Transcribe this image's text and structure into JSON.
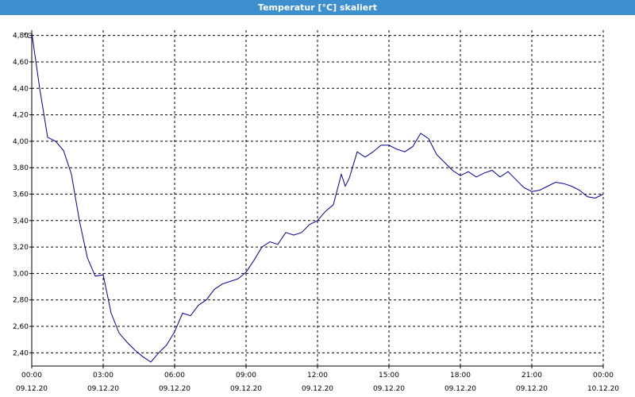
{
  "window": {
    "title": "Temperatur [°C] skaliert"
  },
  "colors": {
    "titlebar": "#3d8fcd",
    "series_line": "#00008b",
    "grid": "#000000"
  },
  "chart_data": {
    "type": "line",
    "title": "Temperatur [°C] skaliert",
    "ylabel": "°C",
    "xlabel": "",
    "ylim": [
      2.3,
      4.84
    ],
    "xlim": [
      "09.12.20 00:00",
      "10.12.20 00:00"
    ],
    "y_ticks": [
      "2,40",
      "2,60",
      "2,80",
      "3,00",
      "3,20",
      "3,40",
      "3,60",
      "3,80",
      "4,00",
      "4,20",
      "4,40",
      "4,60",
      "4,80"
    ],
    "x_ticks": [
      {
        "time": "00:00",
        "date": "09.12.20"
      },
      {
        "time": "03:00",
        "date": "09.12.20"
      },
      {
        "time": "06:00",
        "date": "09.12.20"
      },
      {
        "time": "09:00",
        "date": "09.12.20"
      },
      {
        "time": "12:00",
        "date": "09.12.20"
      },
      {
        "time": "15:00",
        "date": "09.12.20"
      },
      {
        "time": "18:00",
        "date": "09.12.20"
      },
      {
        "time": "21:00",
        "date": "09.12.20"
      },
      {
        "time": "00:00",
        "date": "10.12.20"
      }
    ],
    "grid": true,
    "series": [
      {
        "x": [
          "09.12.20 00:00",
          "09.12.20 00:20",
          "09.12.20 00:40",
          "09.12.20 01:00",
          "09.12.20 01:20",
          "09.12.20 01:40",
          "09.12.20 02:00",
          "09.12.20 02:20",
          "09.12.20 02:40",
          "09.12.20 03:00",
          "09.12.20 03:20",
          "09.12.20 03:40",
          "09.12.20 04:00",
          "09.12.20 04:20",
          "09.12.20 04:40",
          "09.12.20 05:00",
          "09.12.20 05:20",
          "09.12.20 05:40",
          "09.12.20 06:00",
          "09.12.20 06:20",
          "09.12.20 06:40",
          "09.12.20 07:00",
          "09.12.20 07:20",
          "09.12.20 07:40",
          "09.12.20 08:00",
          "09.12.20 08:20",
          "09.12.20 08:40",
          "09.12.20 09:00",
          "09.12.20 09:20",
          "09.12.20 09:40",
          "09.12.20 10:00",
          "09.12.20 10:20",
          "09.12.20 10:40",
          "09.12.20 11:00",
          "09.12.20 11:20",
          "09.12.20 11:40",
          "09.12.20 12:00",
          "09.12.20 12:20",
          "09.12.20 12:40",
          "09.12.20 13:00",
          "09.12.20 13:10",
          "09.12.20 13:20",
          "09.12.20 13:40",
          "09.12.20 14:00",
          "09.12.20 14:20",
          "09.12.20 14:40",
          "09.12.20 15:00",
          "09.12.20 15:20",
          "09.12.20 15:40",
          "09.12.20 16:00",
          "09.12.20 16:20",
          "09.12.20 16:40",
          "09.12.20 17:00",
          "09.12.20 17:20",
          "09.12.20 17:40",
          "09.12.20 18:00",
          "09.12.20 18:20",
          "09.12.20 18:40",
          "09.12.20 19:00",
          "09.12.20 19:20",
          "09.12.20 19:40",
          "09.12.20 20:00",
          "09.12.20 20:20",
          "09.12.20 20:40",
          "09.12.20 21:00",
          "09.12.20 21:20",
          "09.12.20 21:40",
          "09.12.20 22:00",
          "09.12.20 22:20",
          "09.12.20 22:40",
          "09.12.20 23:00",
          "09.12.20 23:20",
          "09.12.20 23:40",
          "10.12.20 00:00"
        ],
        "values": [
          4.82,
          4.4,
          4.03,
          4.0,
          3.93,
          3.75,
          3.4,
          3.12,
          2.98,
          2.99,
          2.7,
          2.55,
          2.48,
          2.42,
          2.37,
          2.33,
          2.4,
          2.46,
          2.56,
          2.7,
          2.68,
          2.76,
          2.8,
          2.88,
          2.92,
          2.94,
          2.96,
          3.01,
          3.1,
          3.2,
          3.24,
          3.22,
          3.31,
          3.29,
          3.31,
          3.37,
          3.4,
          3.47,
          3.52,
          3.75,
          3.66,
          3.72,
          3.92,
          3.88,
          3.92,
          3.97,
          3.97,
          3.94,
          3.92,
          3.96,
          4.06,
          4.02,
          3.9,
          3.84,
          3.78,
          3.74,
          3.77,
          3.73,
          3.76,
          3.78,
          3.73,
          3.77,
          3.71,
          3.65,
          3.62,
          3.63,
          3.66,
          3.69,
          3.68,
          3.66,
          3.63,
          3.58,
          3.57,
          3.6
        ]
      }
    ]
  }
}
